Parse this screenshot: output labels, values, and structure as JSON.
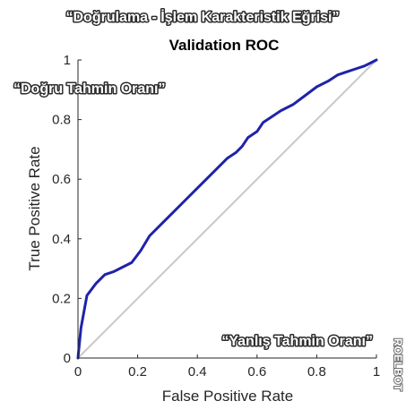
{
  "overlay": {
    "top_caption": "“Doğrulama - İşlem Karakteristik Eğrisi”",
    "y_caption": "“Doğru Tahmin Oranı”",
    "x_caption": "“Yanlış Tahmin Oranı”",
    "watermark": "ROELBOT"
  },
  "colors": {
    "roc_curve": "#1f23a8",
    "chance_line": "#c8c8c8",
    "axes": "#262626",
    "plot_background": "#ffffff",
    "figure_background": "#f0f0f0"
  },
  "chart_data": {
    "type": "line",
    "title": "Validation ROC",
    "xlabel": "False Positive Rate",
    "ylabel": "True Positive Rate",
    "xlim": [
      0,
      1
    ],
    "ylim": [
      0,
      1
    ],
    "xticks": [
      0,
      0.2,
      0.4,
      0.6,
      0.8,
      1
    ],
    "yticks": [
      0,
      0.2,
      0.4,
      0.6,
      0.8,
      1
    ],
    "xtick_labels": [
      "0",
      "0.2",
      "0.4",
      "0.6",
      "0.8",
      "1"
    ],
    "ytick_labels": [
      "0",
      "0.2",
      "0.4",
      "0.6",
      "0.8",
      "1"
    ],
    "grid": false,
    "series": [
      {
        "x": [
          0,
          0.01,
          0.03,
          0.06,
          0.09,
          0.12,
          0.15,
          0.18,
          0.21,
          0.24,
          0.28,
          0.32,
          0.36,
          0.4,
          0.44,
          0.47,
          0.5,
          0.53,
          0.55,
          0.57,
          0.6,
          0.62,
          0.65,
          0.68,
          0.72,
          0.76,
          0.8,
          0.84,
          0.87,
          0.9,
          0.93,
          0.96,
          1.0
        ],
        "y": [
          0,
          0.1,
          0.21,
          0.25,
          0.28,
          0.29,
          0.305,
          0.32,
          0.36,
          0.41,
          0.45,
          0.49,
          0.53,
          0.57,
          0.61,
          0.64,
          0.67,
          0.69,
          0.71,
          0.74,
          0.76,
          0.79,
          0.81,
          0.83,
          0.85,
          0.88,
          0.91,
          0.93,
          0.95,
          0.96,
          0.97,
          0.98,
          1.0
        ]
      },
      {
        "x": [
          0,
          1
        ],
        "y": [
          0,
          1
        ]
      }
    ]
  }
}
